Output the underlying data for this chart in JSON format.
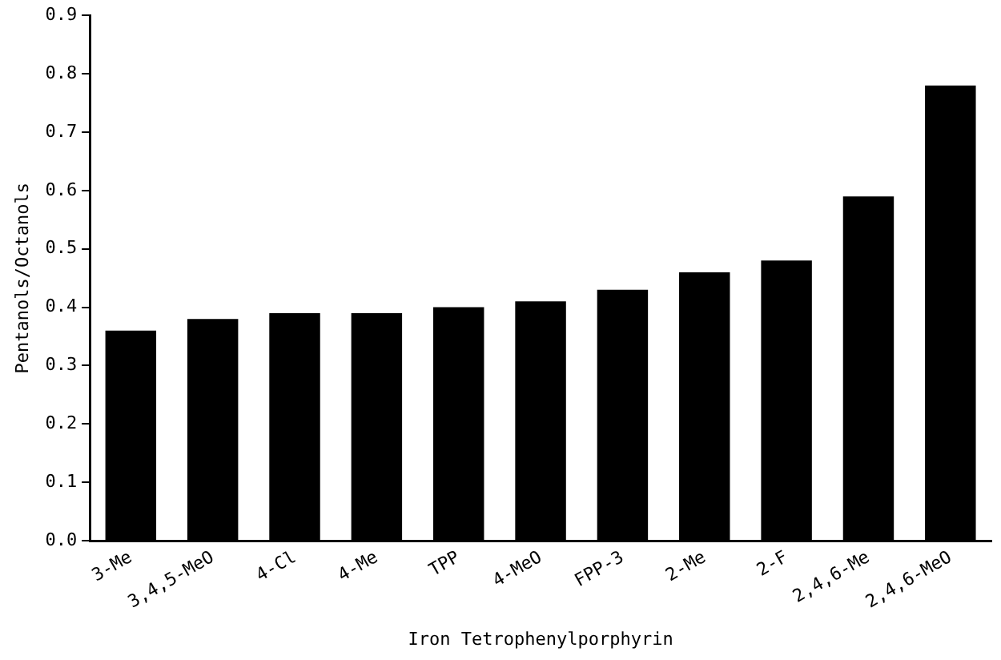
{
  "chart_data": {
    "type": "bar",
    "xlabel": "Iron Tetrophenylporphyrin",
    "ylabel": "Pentanols/Octanols",
    "categories": [
      "3-Me",
      "3,4,5-MeO",
      "4-Cl",
      "4-Me",
      "TPP",
      "4-MeO",
      "FPP-3",
      "2-Me",
      "2-F",
      "2,4,6-Me",
      "2,4,6-MeO"
    ],
    "values": [
      0.36,
      0.38,
      0.39,
      0.39,
      0.4,
      0.41,
      0.43,
      0.46,
      0.48,
      0.59,
      0.78
    ],
    "color": "#000000",
    "ylim": [
      0,
      0.9
    ],
    "yticks": [
      {
        "value": 0,
        "label": "0.0"
      },
      {
        "value": 0.1,
        "label": "0.1"
      },
      {
        "value": 0.2,
        "label": "0.2"
      },
      {
        "value": 0.3,
        "label": "0.3"
      },
      {
        "value": 0.4,
        "label": "0.4"
      },
      {
        "value": 0.5,
        "label": "0.5"
      },
      {
        "value": 0.6,
        "label": "0.6"
      },
      {
        "value": 0.7,
        "label": "0.7"
      },
      {
        "value": 0.8,
        "label": "0.8"
      },
      {
        "value": 0.9,
        "label": "0.9"
      }
    ],
    "grid": false,
    "legend": false
  }
}
